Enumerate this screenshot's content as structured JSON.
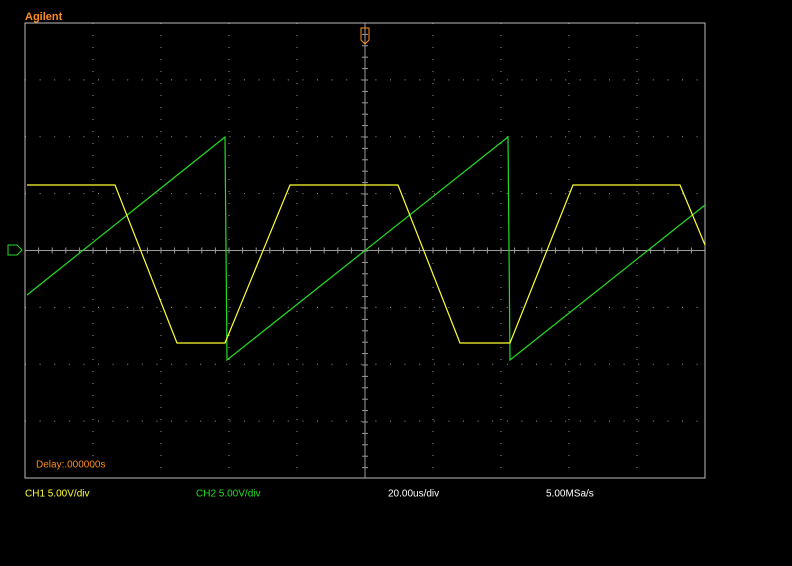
{
  "header": {
    "brand": "Agilent"
  },
  "status": {
    "delay": "Delay:.000000s",
    "ch1": "CH1 5.00V/div",
    "ch2": "CH2 5.00V/div",
    "timebase": "20.00us/div",
    "sample_rate": "5.00MSa/s"
  }
}
